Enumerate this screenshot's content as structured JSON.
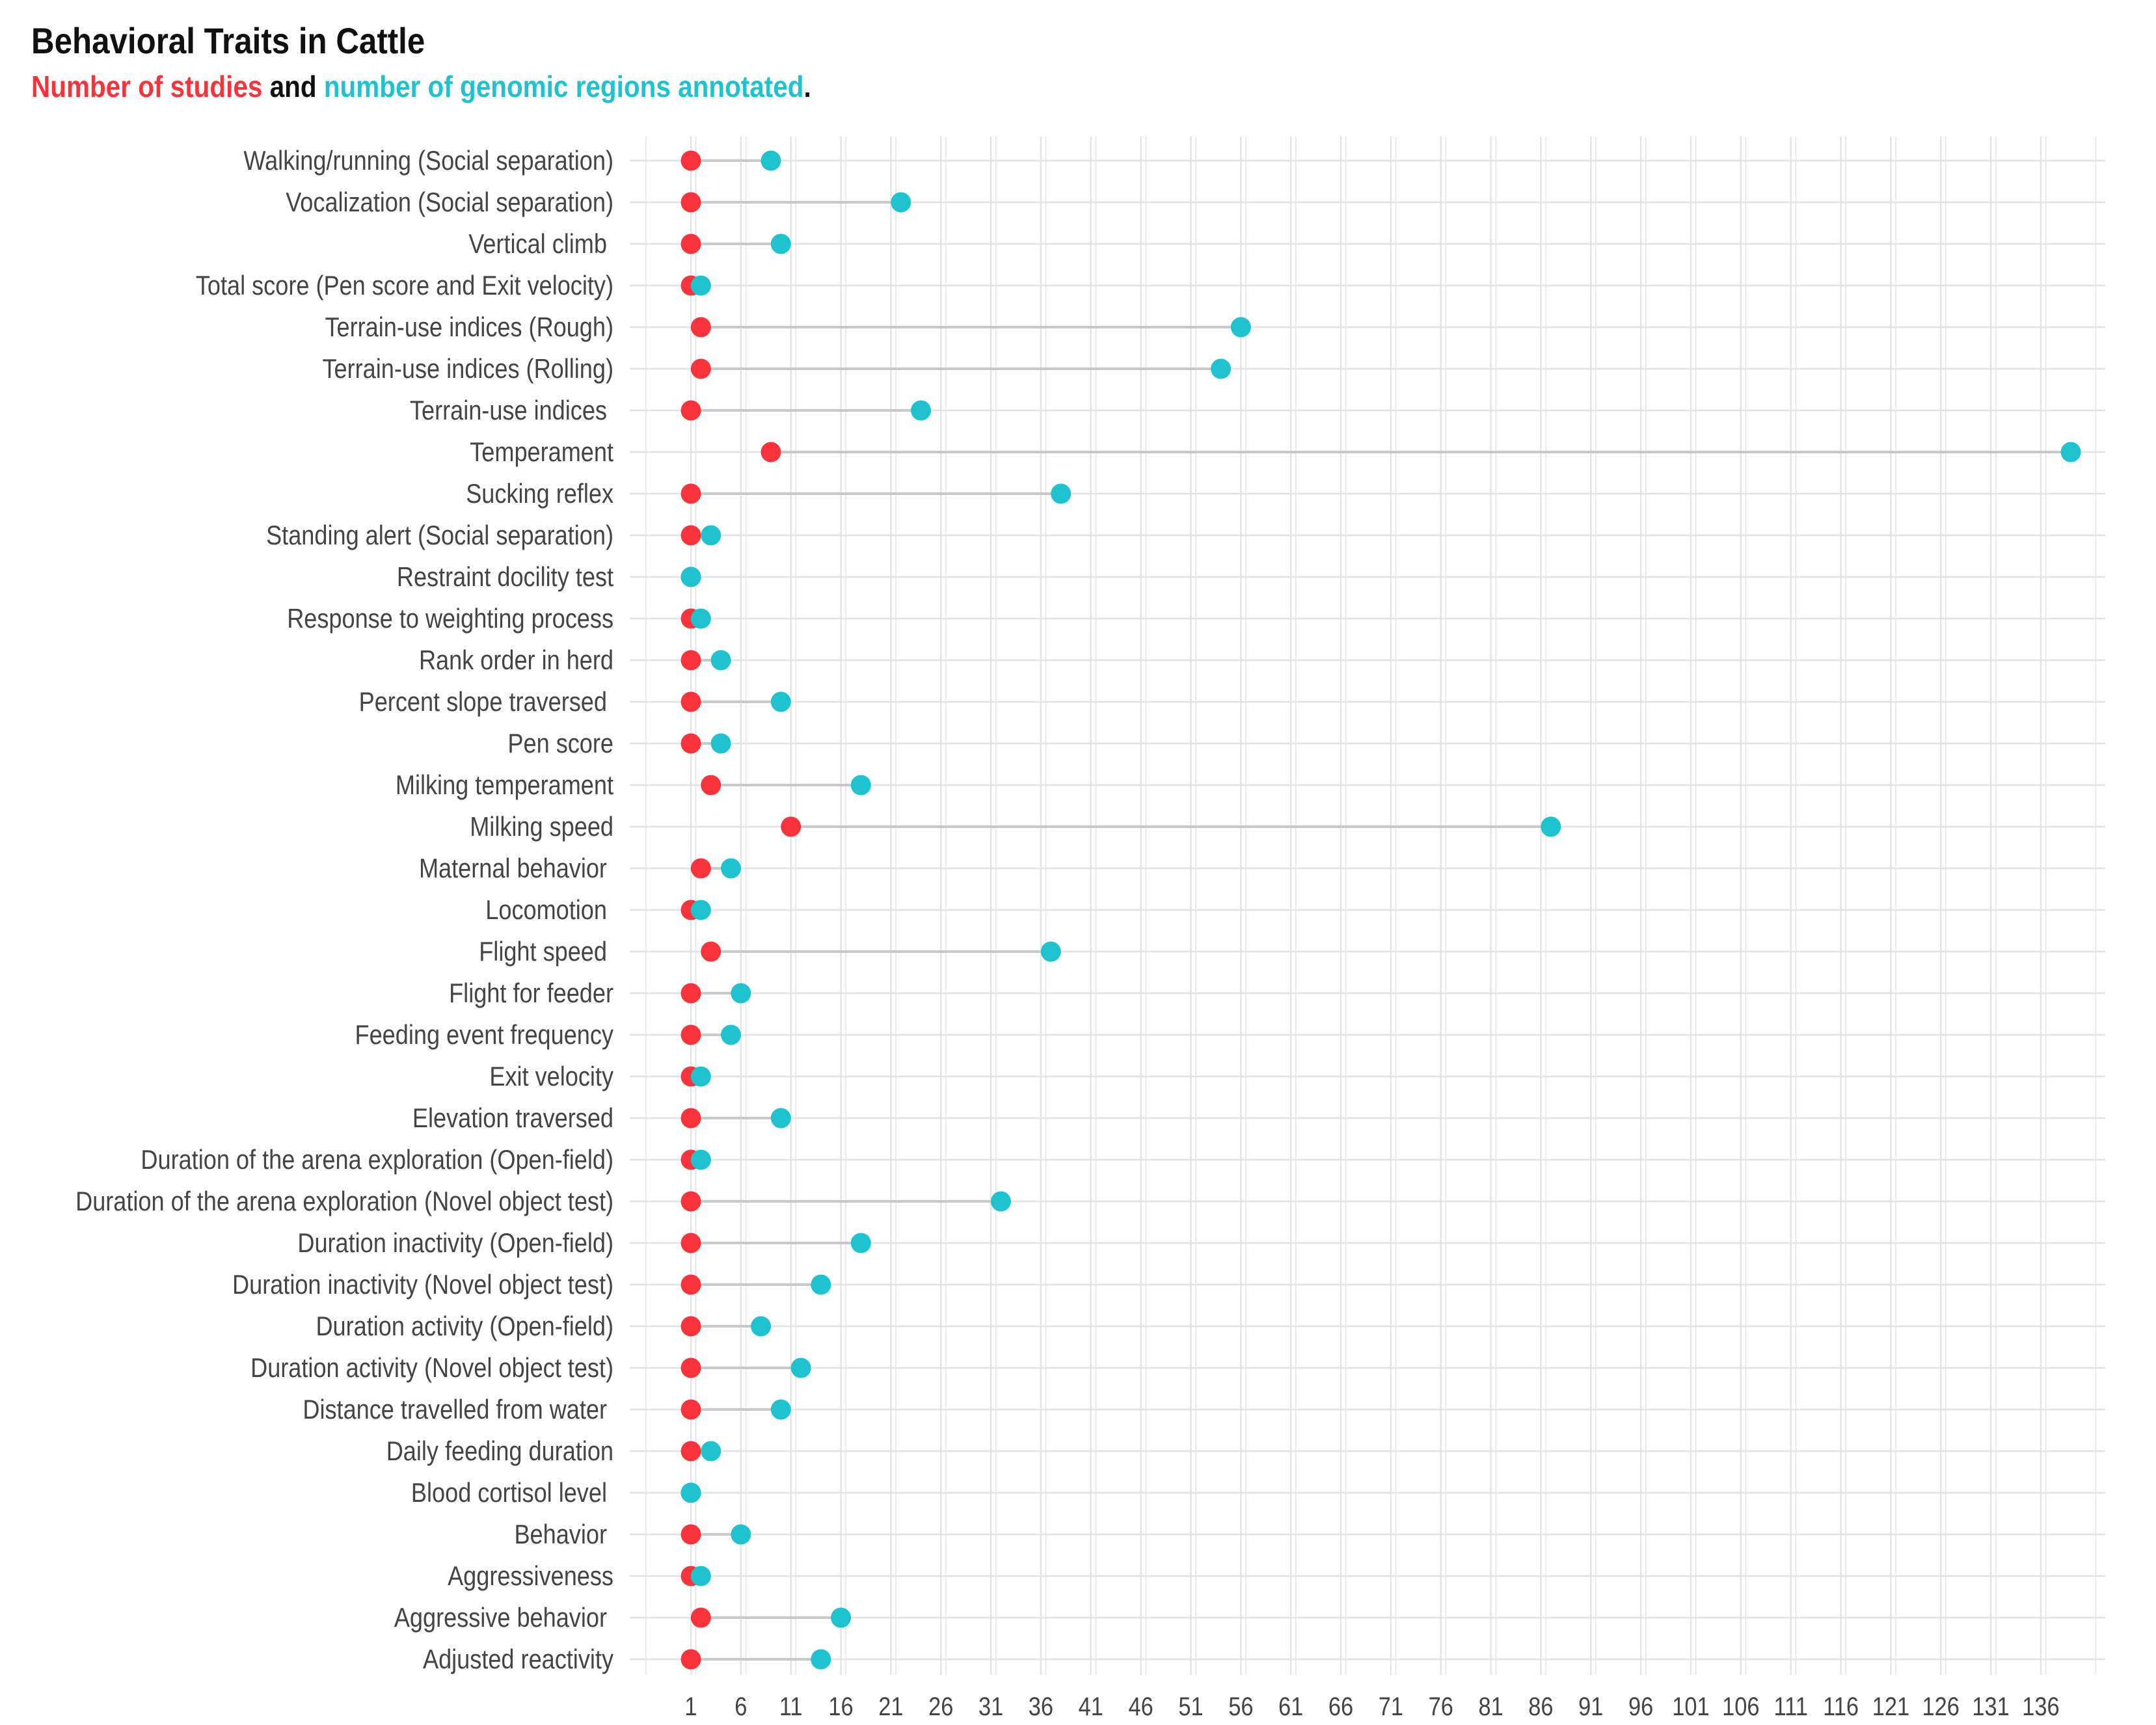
{
  "chart_data": {
    "type": "dumbbell",
    "title": "Behavioral Traits in Cattle",
    "subtitle": {
      "part1": "Number of studies",
      "part2": " and ",
      "part3": "number of genomic regions annotated",
      "part4": "."
    },
    "colors": {
      "studies": "#f8333c",
      "regions": "#1ec3cf",
      "connector": "#c8c8c8",
      "grid": "#e3e3e3",
      "title": "#111111",
      "tick": "#444444"
    },
    "x_ticks": [
      1,
      6,
      11,
      16,
      21,
      26,
      31,
      36,
      41,
      46,
      51,
      56,
      61,
      66,
      71,
      76,
      81,
      86,
      91,
      96,
      101,
      106,
      111,
      116,
      121,
      126,
      131,
      136
    ],
    "xlim": [
      -4,
      143
    ],
    "traits": [
      {
        "label": "Walking/running (Social separation)",
        "studies": 1,
        "regions": 9
      },
      {
        "label": "Vocalization (Social separation)",
        "studies": 1,
        "regions": 22
      },
      {
        "label": "Vertical climb ",
        "studies": 1,
        "regions": 10
      },
      {
        "label": "Total score (Pen score and Exit velocity)",
        "studies": 1,
        "regions": 2
      },
      {
        "label": "Terrain-use indices (Rough)",
        "studies": 2,
        "regions": 56
      },
      {
        "label": "Terrain-use indices (Rolling)",
        "studies": 2,
        "regions": 54
      },
      {
        "label": "Terrain-use indices ",
        "studies": 1,
        "regions": 24
      },
      {
        "label": "Temperament",
        "studies": 9,
        "regions": 139
      },
      {
        "label": "Sucking reflex",
        "studies": 1,
        "regions": 38
      },
      {
        "label": "Standing alert (Social separation)",
        "studies": 1,
        "regions": 3
      },
      {
        "label": "Restraint docility test",
        "studies": 1,
        "regions": 1
      },
      {
        "label": "Response to weighting process",
        "studies": 1,
        "regions": 2
      },
      {
        "label": "Rank order in herd",
        "studies": 1,
        "regions": 4
      },
      {
        "label": "Percent slope traversed ",
        "studies": 1,
        "regions": 10
      },
      {
        "label": "Pen score",
        "studies": 1,
        "regions": 4
      },
      {
        "label": "Milking temperament",
        "studies": 3,
        "regions": 18
      },
      {
        "label": "Milking speed",
        "studies": 11,
        "regions": 87
      },
      {
        "label": "Maternal behavior ",
        "studies": 2,
        "regions": 5
      },
      {
        "label": "Locomotion ",
        "studies": 1,
        "regions": 2
      },
      {
        "label": "Flight speed ",
        "studies": 3,
        "regions": 37
      },
      {
        "label": "Flight for feeder",
        "studies": 1,
        "regions": 6
      },
      {
        "label": "Feeding event frequency",
        "studies": 1,
        "regions": 5
      },
      {
        "label": "Exit velocity",
        "studies": 1,
        "regions": 2
      },
      {
        "label": "Elevation traversed",
        "studies": 1,
        "regions": 10
      },
      {
        "label": "Duration of the arena exploration (Open-field)",
        "studies": 1,
        "regions": 2
      },
      {
        "label": "Duration of the arena exploration (Novel object test)",
        "studies": 1,
        "regions": 32
      },
      {
        "label": "Duration inactivity (Open-field)",
        "studies": 1,
        "regions": 18
      },
      {
        "label": "Duration inactivity (Novel object test)",
        "studies": 1,
        "regions": 14
      },
      {
        "label": "Duration activity (Open-field)",
        "studies": 1,
        "regions": 8
      },
      {
        "label": "Duration activity (Novel object test)",
        "studies": 1,
        "regions": 12
      },
      {
        "label": "Distance travelled from water ",
        "studies": 1,
        "regions": 10
      },
      {
        "label": "Daily feeding duration",
        "studies": 1,
        "regions": 3
      },
      {
        "label": "Blood cortisol level ",
        "studies": 1,
        "regions": 1
      },
      {
        "label": "Behavior ",
        "studies": 1,
        "regions": 6
      },
      {
        "label": "Aggressiveness",
        "studies": 1,
        "regions": 2
      },
      {
        "label": "Aggressive behavior ",
        "studies": 2,
        "regions": 16
      },
      {
        "label": "Adjusted reactivity",
        "studies": 1,
        "regions": 14
      }
    ]
  }
}
